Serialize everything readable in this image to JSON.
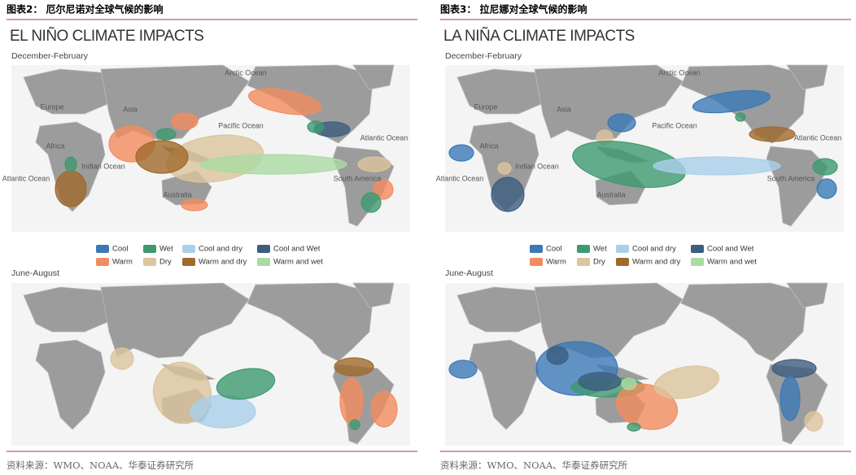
{
  "panels": [
    {
      "header": "图表2：  厄尔尼诺对全球气候的影响",
      "title": "EL NIÑO CLIMATE IMPACTS",
      "seasons": [
        "December-February",
        "June-August"
      ],
      "map_labels": [
        "Arctic Ocean",
        "Europe",
        "Asia",
        "Pacific Ocean",
        "Atlantic Ocean",
        "Africa",
        "Indian Ocean",
        "Atlantic Ocean",
        "Australia",
        "South America"
      ],
      "legend": [
        {
          "name": "Cool",
          "color": "#3b79b6"
        },
        {
          "name": "Wet",
          "color": "#3f9a70"
        },
        {
          "name": "Cool and dry",
          "color": "#a9d0ea"
        },
        {
          "name": "Cool and Wet",
          "color": "#3d5e80"
        },
        {
          "name": "Warm",
          "color": "#f28c5e"
        },
        {
          "name": "Dry",
          "color": "#dcc49c"
        },
        {
          "name": "Warm and dry",
          "color": "#a06a2c"
        },
        {
          "name": "Warm and wet",
          "color": "#aadba2"
        }
      ],
      "source": "资料来源：WMO、NOAA、华泰证券研究所"
    },
    {
      "header": "图表3：  拉尼娜对全球气候的影响",
      "title": "LA NIÑA CLIMATE IMPACTS",
      "seasons": [
        "December-February",
        "June-August"
      ],
      "map_labels": [
        "Arctic Ocean",
        "Europe",
        "Asia",
        "Pacific Ocean",
        "Atlantic Ocean",
        "Africa",
        "Indian Ocean",
        "Atlantic Ocean",
        "Australia",
        "South America"
      ],
      "legend": [
        {
          "name": "Cool",
          "color": "#3b79b6"
        },
        {
          "name": "Wet",
          "color": "#3f9a70"
        },
        {
          "name": "Cool and dry",
          "color": "#a9d0ea"
        },
        {
          "name": "Cool and Wet",
          "color": "#3d5e80"
        },
        {
          "name": "Warm",
          "color": "#f28c5e"
        },
        {
          "name": "Dry",
          "color": "#dcc49c"
        },
        {
          "name": "Warm and dry",
          "color": "#a06a2c"
        },
        {
          "name": "Warm and wet",
          "color": "#aadba2"
        }
      ],
      "source": "资料来源：WMO、NOAA、华泰证券研究所"
    }
  ]
}
